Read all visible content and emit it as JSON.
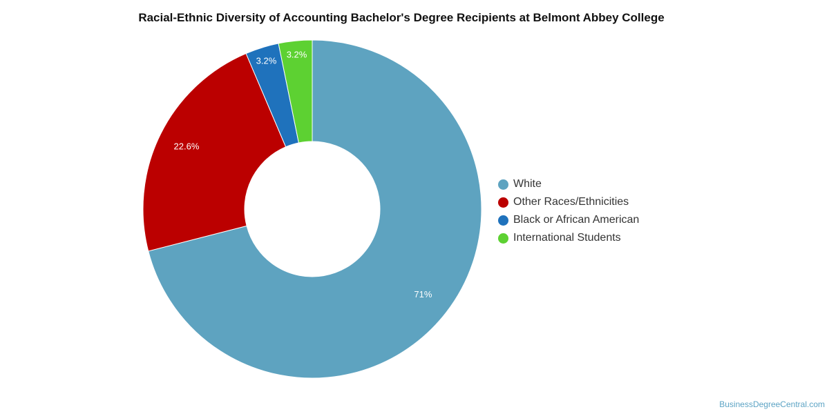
{
  "chart_data": {
    "type": "pie",
    "variant": "donut",
    "title": "Racial-Ethnic Diversity of Accounting Bachelor's Degree Recipients at Belmont Abbey College",
    "legend_position": "right",
    "slices": [
      {
        "label": "White",
        "value": 71.0,
        "data_label": "71%",
        "color": "#5ea3c0"
      },
      {
        "label": "Other Races/Ethnicities",
        "value": 22.6,
        "data_label": "22.6%",
        "color": "#bb0000"
      },
      {
        "label": "Black or African American",
        "value": 3.2,
        "data_label": "3.2%",
        "color": "#1f72bc"
      },
      {
        "label": "International Students",
        "value": 3.2,
        "data_label": "3.2%",
        "color": "#5dd132"
      }
    ]
  },
  "watermark": "BusinessDegreeCentral.com"
}
